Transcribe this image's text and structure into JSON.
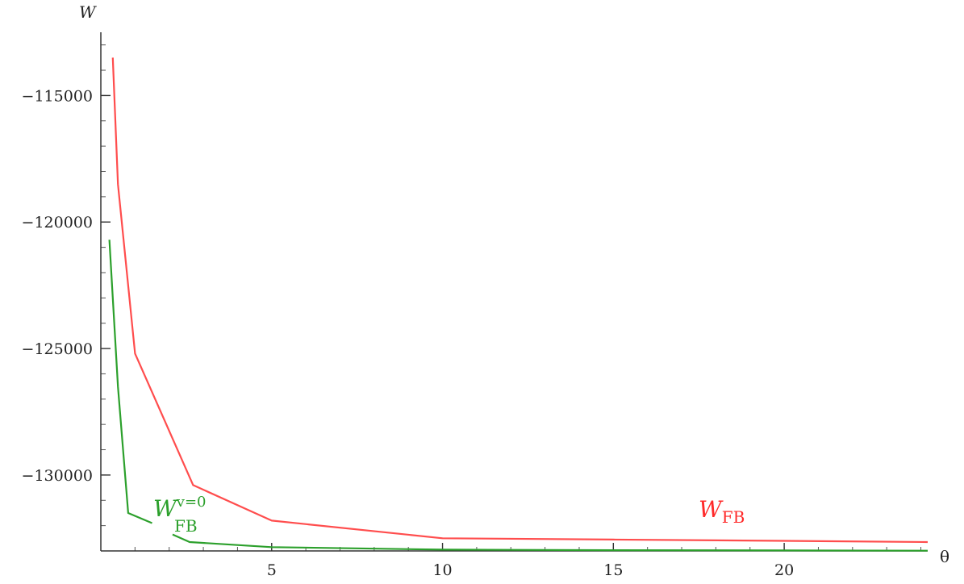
{
  "chart_data": {
    "type": "line",
    "xlabel": "θ",
    "ylabel": "W",
    "xlim": [
      0,
      24.2
    ],
    "ylim": [
      -133000,
      -112500
    ],
    "x_ticks": [
      5,
      10,
      15,
      20
    ],
    "y_ticks": [
      -115000,
      -120000,
      -125000,
      -130000
    ],
    "x_minor_step": 1,
    "y_minor_step": 1000,
    "grid": false,
    "series": [
      {
        "name": "W_FB",
        "label_main": "W",
        "label_sub": "FB",
        "color": "#ff4d4d",
        "x": [
          0.35,
          0.5,
          1.0,
          2.7,
          5.0,
          10.0,
          15.0,
          20.0,
          24.2
        ],
        "y": [
          -113500,
          -118500,
          -125200,
          -130400,
          -131800,
          -132500,
          -132550,
          -132600,
          -132650
        ]
      },
      {
        "name": "W_FB^{v=0}",
        "label_main": "W",
        "label_sub": "FB",
        "label_sup": "v=0",
        "color": "#2ca02c",
        "segments": [
          {
            "x": [
              0.25,
              0.5,
              0.8,
              1.5
            ],
            "y": [
              -120700,
              -126500,
              -131500,
              -131900
            ]
          },
          {
            "x": [
              2.1,
              2.6,
              5.0,
              10.0,
              15.0,
              20.0,
              24.2
            ],
            "y": [
              -132350,
              -132650,
              -132850,
              -132950,
              -132970,
              -132980,
              -132990
            ]
          }
        ]
      }
    ]
  }
}
